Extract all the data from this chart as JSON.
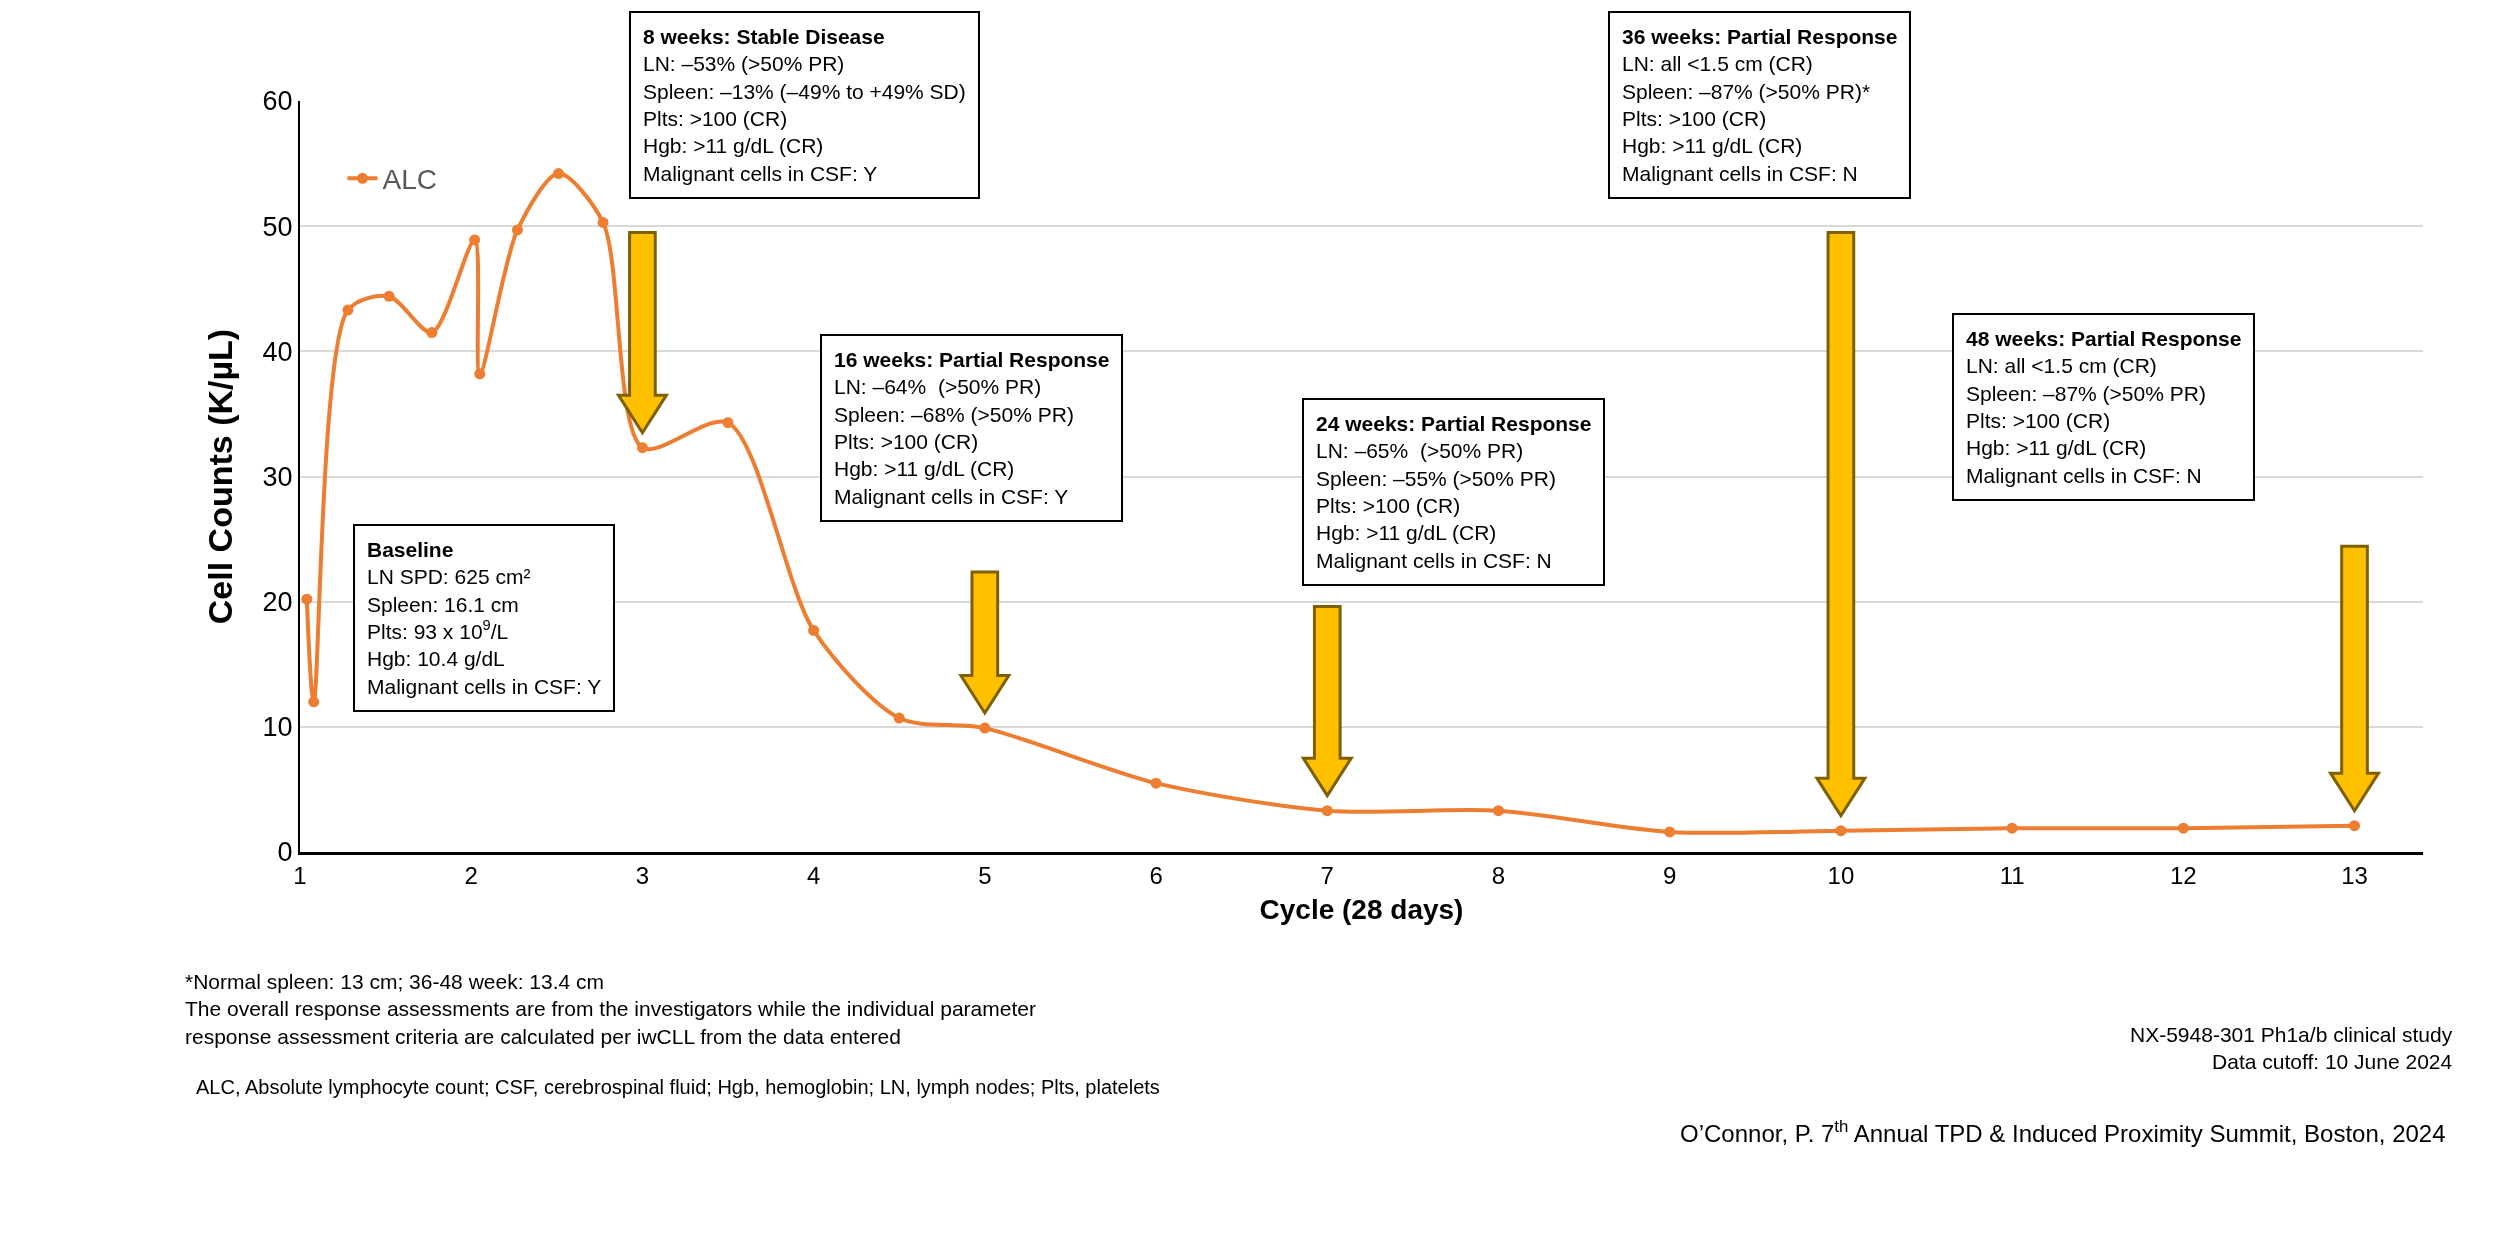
{
  "chart_data": {
    "type": "line",
    "xlabel": "Cycle (28 days)",
    "ylabel": "Cell Counts (K/µL)",
    "x": [
      1.04,
      1.08,
      1.28,
      1.52,
      1.77,
      2.02,
      2.05,
      2.27,
      2.51,
      2.77,
      3.0,
      3.5,
      4.0,
      4.5,
      5.0,
      6.0,
      7.0,
      8.0,
      9.0,
      10.0,
      11.0,
      12.0,
      13.0
    ],
    "series": [
      {
        "name": "ALC",
        "color": "#ed7d31",
        "values": [
          20.2,
          12.0,
          43.3,
          44.4,
          41.5,
          48.9,
          38.2,
          49.7,
          54.2,
          50.3,
          32.3,
          34.3,
          17.7,
          10.7,
          9.9,
          5.5,
          3.3,
          3.3,
          1.6,
          1.7,
          1.9,
          1.9,
          2.1
        ]
      }
    ],
    "xlim": [
      1,
      13.4
    ],
    "xticks": [
      1,
      2,
      3,
      4,
      5,
      6,
      7,
      8,
      9,
      10,
      11,
      12,
      13
    ],
    "ylim": [
      0,
      60
    ],
    "yticks": [
      0,
      10,
      20,
      30,
      40,
      50,
      60
    ],
    "grid": "y",
    "legend": "top left",
    "marker": "circle",
    "line_style": "solid",
    "annotations": [
      "Baseline\nLN SPD: 625 cm²\nSpleen: 16.1 cm\nPlts: 93 x 10$^{9}$/L\nHgb: 10.4 g/dL\nMalignant cells in CSF: Y",
      "8 weeks: Stable Disease\nLN: –53% (>50% PR)\nSpleen: –13% (–49% to +49% SD)\nPlts: >100 (CR)\nHgb: >11 g/dL (CR)\nMalignant cells in CSF: Y",
      "16 weeks: Partial Response\nLN: –64%  (>50% PR)\nSpleen: –68% (>50% PR)\nPlts: >100 (CR)\nHgb: >11 g/dL (CR)\nMalignant cells in CSF: Y",
      "24 weeks: Partial Response\nLN: –65%  (>50% PR)\nSpleen: –55% (>50% PR)\nPlts: >100 (CR)\nHgb: >11 g/dL (CR)\nMalignant cells in CSF: N",
      "36 weeks: Partial Response\nLN: all <1.5 cm (CR)\nSpleen: –87% (>50% PR)*\nPlts: >100 (CR)\nHgb: >11 g/dL (CR)\nMalignant cells in CSF: N",
      "48 weeks: Partial Response\nLN: all <1.5 cm (CR)\nSpleen: –87% (>50% PR)\nPlts: >100 (CR)\nHgb: >11 g/dL (CR)\nMalignant cells in CSF: N",
      "*Normal spleen: 13 cm; 36-48 week: 13.4 cm\nThe overall response assessments are from the investigators while the individual parameter\nresponse assessment criteria are calculated per iwCLL from the data entered",
      "ALC, Absolute lymphocyte count; CSF, cerebrospinal fluid; Hgb, hemoglobin; LN, lymph nodes; Plts, platelets",
      "NX-5948-301 Ph1a/b clinical study\nData cutoff: 10 June 2024",
      "O’Connor, P. 7$^{th}$ Annual TPD & Induced Proximity Summit, Boston, 2024"
    ]
  }
}
